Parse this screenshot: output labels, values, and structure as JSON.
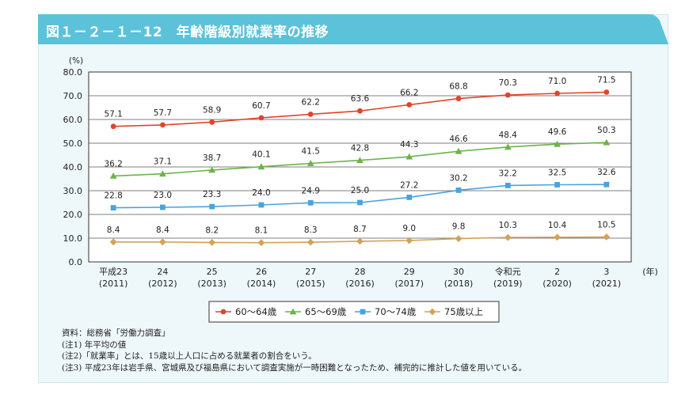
{
  "title": "図１－２－１－12　年齢階級別就業率の推移",
  "header_color": "#5bc2d9",
  "chart_data": {
    "type": "line",
    "ylabel": "(%)",
    "xlabel": "(年)",
    "ylim": [
      0,
      80
    ],
    "yticks": [
      "0.0",
      "10.0",
      "20.0",
      "30.0",
      "40.0",
      "50.0",
      "60.0",
      "70.0",
      "80.0"
    ],
    "grid": true,
    "legend_position": "bottom",
    "categories": [
      [
        "平成23",
        "(2011)"
      ],
      [
        "24",
        "(2012)"
      ],
      [
        "25",
        "(2013)"
      ],
      [
        "26",
        "(2014)"
      ],
      [
        "27",
        "(2015)"
      ],
      [
        "28",
        "(2016)"
      ],
      [
        "29",
        "(2017)"
      ],
      [
        "30",
        "(2018)"
      ],
      [
        "令和元",
        "(2019)"
      ],
      [
        "2",
        "(2020)"
      ],
      [
        "3",
        "(2021)"
      ]
    ],
    "series": [
      {
        "name": "60～64歳",
        "color": "#e0452b",
        "marker": "circle",
        "values": [
          57.1,
          57.7,
          58.9,
          60.7,
          62.2,
          63.6,
          66.2,
          68.8,
          70.3,
          71.0,
          71.5
        ],
        "labels": [
          "57.1",
          "57.7",
          "58.9",
          "60.7",
          "62.2",
          "63.6",
          "66.2",
          "68.8",
          "70.3",
          "71.0",
          "71.5"
        ]
      },
      {
        "name": "65～69歳",
        "color": "#6cb34a",
        "marker": "triangle",
        "values": [
          36.2,
          37.1,
          38.7,
          40.1,
          41.5,
          42.8,
          44.3,
          46.6,
          48.4,
          49.6,
          50.3
        ],
        "labels": [
          "36.2",
          "37.1",
          "38.7",
          "40.1",
          "41.5",
          "42.8",
          "44.3",
          "46.6",
          "48.4",
          "49.6",
          "50.3"
        ]
      },
      {
        "name": "70～74歳",
        "color": "#4ba3dc",
        "marker": "square",
        "values": [
          22.8,
          23.0,
          23.3,
          24.0,
          24.9,
          25.0,
          27.2,
          30.2,
          32.2,
          32.5,
          32.6
        ],
        "labels": [
          "22.8",
          "23.0",
          "23.3",
          "24.0",
          "24.9",
          "25.0",
          "27.2",
          "30.2",
          "32.2",
          "32.5",
          "32.6"
        ]
      },
      {
        "name": "75歳以上",
        "color": "#d4a257",
        "marker": "diamond",
        "values": [
          8.4,
          8.4,
          8.2,
          8.1,
          8.3,
          8.7,
          9.0,
          9.8,
          10.3,
          10.4,
          10.5
        ],
        "labels": [
          "8.4",
          "8.4",
          "8.2",
          "8.1",
          "8.3",
          "8.7",
          "9.0",
          "9.8",
          "10.3",
          "10.4",
          "10.5"
        ]
      }
    ]
  },
  "notes": [
    "資料：総務省「労働力調査」",
    "(注1) 年平均の値",
    "(注2)「就業率」とは、15歳以上人口に占める就業者の割合をいう。",
    "(注3) 平成23年は岩手県、宮城県及び福島県において調査実施が一時困難となったため、補完的に推計した値を用いている。"
  ]
}
